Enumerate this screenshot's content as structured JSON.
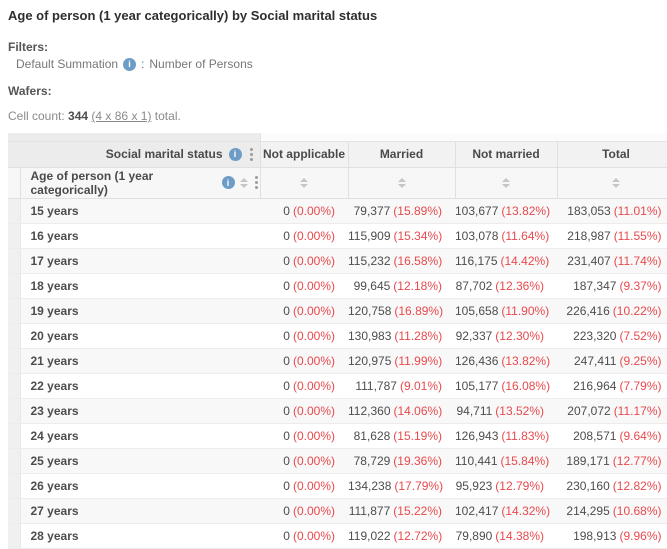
{
  "page": {
    "title": "Age of person (1 year categorically) by Social marital status",
    "filters_label": "Filters:",
    "filter_name": "Default Summation",
    "filter_separator": ":",
    "filter_value": "Number of Persons",
    "wafers_label": "Wafers:",
    "cell_count_label": "Cell count:",
    "cell_count_value": "344",
    "cell_count_link": "(4 x 86 x 1)",
    "cell_count_suffix": "total."
  },
  "icons": {
    "info": "i",
    "kebab": "vertical-three-dots",
    "sort": "up-down-arrows"
  },
  "colors": {
    "percent_red": "#e8494d",
    "info_icon_blue": "#6d9dc6",
    "header_gray": "#f2f2f2",
    "text_dark": "#4d4d4d"
  },
  "table": {
    "column_group_header": "Social marital status",
    "row_group_header": "Age of person (1 year categorically)",
    "columns": [
      "Not applicable",
      "Married",
      "Not married",
      "Total"
    ],
    "rows": [
      {
        "label": "15 years",
        "cells": [
          [
            "0",
            "(0.00%)"
          ],
          [
            "79,377",
            "(15.89%)"
          ],
          [
            "103,677",
            "(13.82%)"
          ],
          [
            "183,053",
            "(11.01%)"
          ]
        ]
      },
      {
        "label": "16 years",
        "cells": [
          [
            "0",
            "(0.00%)"
          ],
          [
            "115,909",
            "(15.34%)"
          ],
          [
            "103,078",
            "(11.64%)"
          ],
          [
            "218,987",
            "(11.55%)"
          ]
        ]
      },
      {
        "label": "17 years",
        "cells": [
          [
            "0",
            "(0.00%)"
          ],
          [
            "115,232",
            "(16.58%)"
          ],
          [
            "116,175",
            "(14.42%)"
          ],
          [
            "231,407",
            "(11.74%)"
          ]
        ]
      },
      {
        "label": "18 years",
        "cells": [
          [
            "0",
            "(0.00%)"
          ],
          [
            "99,645",
            "(12.18%)"
          ],
          [
            "87,702",
            "(12.36%)"
          ],
          [
            "187,347",
            "(9.37%)"
          ]
        ]
      },
      {
        "label": "19 years",
        "cells": [
          [
            "0",
            "(0.00%)"
          ],
          [
            "120,758",
            "(16.89%)"
          ],
          [
            "105,658",
            "(11.90%)"
          ],
          [
            "226,416",
            "(10.22%)"
          ]
        ]
      },
      {
        "label": "20 years",
        "cells": [
          [
            "0",
            "(0.00%)"
          ],
          [
            "130,983",
            "(11.28%)"
          ],
          [
            "92,337",
            "(12.30%)"
          ],
          [
            "223,320",
            "(7.52%)"
          ]
        ]
      },
      {
        "label": "21 years",
        "cells": [
          [
            "0",
            "(0.00%)"
          ],
          [
            "120,975",
            "(11.99%)"
          ],
          [
            "126,436",
            "(13.82%)"
          ],
          [
            "247,411",
            "(9.25%)"
          ]
        ]
      },
      {
        "label": "22 years",
        "cells": [
          [
            "0",
            "(0.00%)"
          ],
          [
            "111,787",
            "(9.01%)"
          ],
          [
            "105,177",
            "(16.08%)"
          ],
          [
            "216,964",
            "(7.79%)"
          ]
        ]
      },
      {
        "label": "23 years",
        "cells": [
          [
            "0",
            "(0.00%)"
          ],
          [
            "112,360",
            "(14.06%)"
          ],
          [
            "94,711",
            "(13.52%)"
          ],
          [
            "207,072",
            "(11.17%)"
          ]
        ]
      },
      {
        "label": "24 years",
        "cells": [
          [
            "0",
            "(0.00%)"
          ],
          [
            "81,628",
            "(15.19%)"
          ],
          [
            "126,943",
            "(11.83%)"
          ],
          [
            "208,571",
            "(9.64%)"
          ]
        ]
      },
      {
        "label": "25 years",
        "cells": [
          [
            "0",
            "(0.00%)"
          ],
          [
            "78,729",
            "(19.36%)"
          ],
          [
            "110,441",
            "(15.84%)"
          ],
          [
            "189,171",
            "(12.77%)"
          ]
        ]
      },
      {
        "label": "26 years",
        "cells": [
          [
            "0",
            "(0.00%)"
          ],
          [
            "134,238",
            "(17.79%)"
          ],
          [
            "95,923",
            "(12.79%)"
          ],
          [
            "230,160",
            "(12.82%)"
          ]
        ]
      },
      {
        "label": "27 years",
        "cells": [
          [
            "0",
            "(0.00%)"
          ],
          [
            "111,877",
            "(15.22%)"
          ],
          [
            "102,417",
            "(14.32%)"
          ],
          [
            "214,295",
            "(10.68%)"
          ]
        ]
      },
      {
        "label": "28 years",
        "cells": [
          [
            "0",
            "(0.00%)"
          ],
          [
            "119,022",
            "(12.72%)"
          ],
          [
            "79,890",
            "(14.38%)"
          ],
          [
            "198,913",
            "(9.96%)"
          ]
        ]
      }
    ]
  }
}
